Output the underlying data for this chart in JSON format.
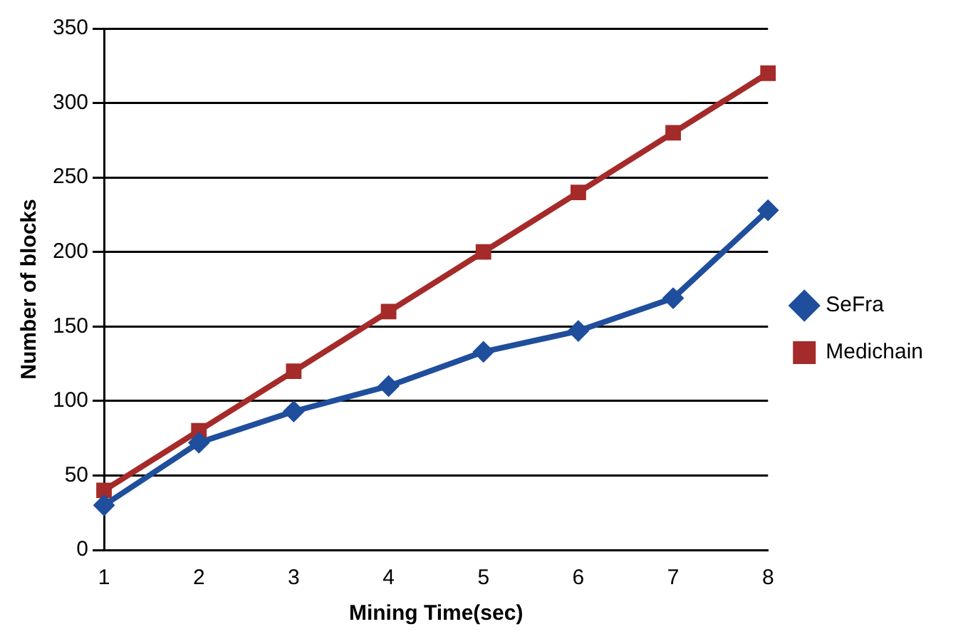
{
  "chart_data": {
    "type": "line",
    "xlabel": "Mining Time(sec)",
    "ylabel": "Number of blocks",
    "categories": [
      "1",
      "2",
      "3",
      "4",
      "5",
      "6",
      "7",
      "8"
    ],
    "series": [
      {
        "name": "SeFra",
        "color": "#1f4e9c",
        "marker": "diamond",
        "values": [
          30,
          72,
          93,
          110,
          133,
          147,
          169,
          228
        ]
      },
      {
        "name": "Medichain",
        "color": "#a52a2a",
        "marker": "square",
        "values": [
          40,
          80,
          120,
          160,
          200,
          240,
          280,
          320
        ]
      }
    ],
    "ylim": [
      0,
      350
    ],
    "yticks": [
      0,
      50,
      100,
      150,
      200,
      250,
      300,
      350
    ],
    "grid": "y",
    "legend": "right",
    "line_style": "solid"
  }
}
